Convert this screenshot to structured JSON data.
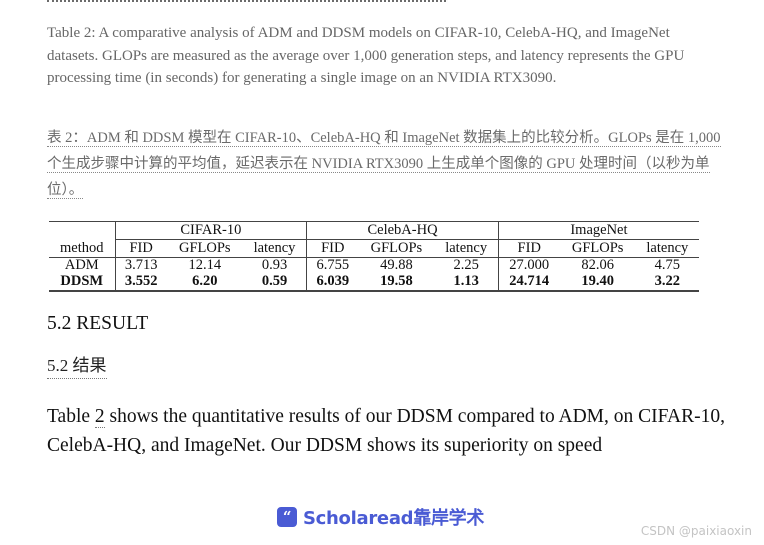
{
  "caption_en": "Table 2: A comparative analysis of ADM and DDSM models on CIFAR-10, CelebA-HQ, and ImageNet datasets. GLOPs are measured as the average over 1,000 generation steps, and latency represents the GPU processing time (in seconds) for generating a single image on an NVIDIA RTX3090.",
  "caption_zh": "表 2：ADM 和 DDSM 模型在 CIFAR-10、CelebA-HQ 和 ImageNet 数据集上的比较分析。GLOPs 是在 1,000 个生成步骤中计算的平均值，延迟表示在 NVIDIA RTX3090 上生成单个图像的 GPU 处理时间（以秒为单位）。",
  "table": {
    "groups": [
      "CIFAR-10",
      "CelebA-HQ",
      "ImageNet"
    ],
    "method_header": "method",
    "col_headers": [
      "FID",
      "GFLOPs",
      "latency",
      "FID",
      "GFLOPs",
      "latency",
      "FID",
      "GFLOPs",
      "latency"
    ],
    "rows": [
      {
        "method": "ADM",
        "values": [
          "3.713",
          "12.14",
          "0.93",
          "6.755",
          "49.88",
          "2.25",
          "27.000",
          "82.06",
          "4.75"
        ]
      },
      {
        "method": "DDSM",
        "values": [
          "3.552",
          "6.20",
          "0.59",
          "6.039",
          "19.58",
          "1.13",
          "24.714",
          "19.40",
          "3.22"
        ]
      }
    ]
  },
  "section_en": "5.2 RESULT",
  "section_zh": "5.2 结果",
  "body": {
    "pre": "Table ",
    "ref": "2",
    "post": " shows the quantitative results of our DDSM compared to ADM, on CIFAR-10, CelebA-HQ, and ImageNet. Our DDSM shows its superiority on speed"
  },
  "brand": {
    "icon_glyph": "“",
    "name": "Scholaread靠岸学术",
    "color": "#4a5bd4"
  },
  "watermark": "CSDN @paixiaoxin"
}
